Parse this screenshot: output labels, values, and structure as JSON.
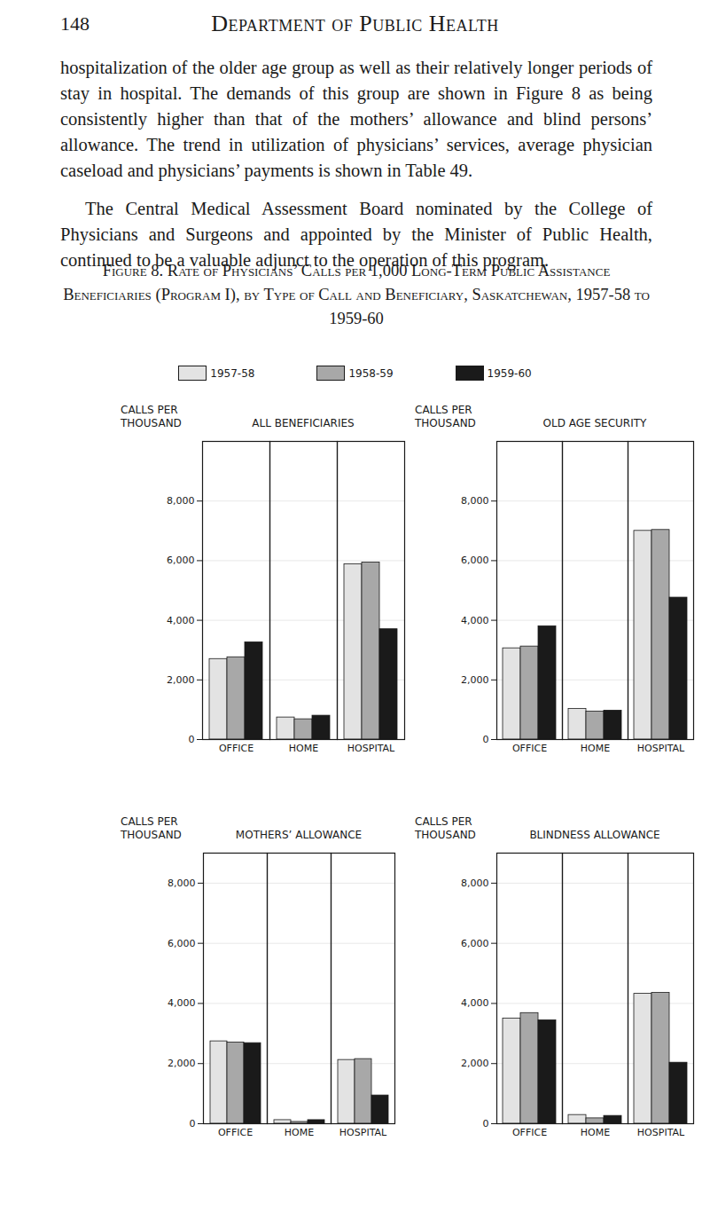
{
  "page_number": "148",
  "header": "Department of Public Health",
  "paragraphs": [
    "hospitalization of the older age group as well as their relatively longer periods of stay in hospital. The demands of this group are shown in Figure 8 as being consistently higher than that of the mothers’ allowance and blind persons’ allowance. The trend in utilization of physicians’ services, average physician caseload and physicians’ payments is shown in Table 49.",
    "The Central Medical Assessment Board nominated by the College of Physicians and Surgeons and appointed by the Minister of Public Health, continued to be a valuable adjunct to the operation of this program."
  ],
  "figure_caption": "Figure 8. Rate of Physicians’ Calls per 1,000 Long-Term Public Assistance Beneficiaries (Program I), by Type of Call and Beneficiary, Saskatchewan, 1957-58 to 1959-60",
  "chart_data": [
    {
      "type": "bar",
      "title": "ALL BENEFICIARIES",
      "y_label": "CALLS PER THOUSAND",
      "categories": [
        "OFFICE",
        "HOME",
        "HOSPITAL"
      ],
      "series": [
        {
          "name": "1957-58",
          "color": "#e3e3e3",
          "values": [
            2700,
            740,
            5880
          ]
        },
        {
          "name": "1958-59",
          "color": "#a8a8a8",
          "values": [
            2760,
            680,
            5940
          ]
        },
        {
          "name": "1959-60",
          "color": "#1a1a1a",
          "values": [
            3260,
            800,
            3700
          ]
        }
      ],
      "ylim": [
        0,
        10000
      ],
      "yticks": [
        0,
        {
          "value": 2000,
          "label": "2,000"
        },
        {
          "value": 4000,
          "label": "4,000"
        },
        {
          "value": 6000,
          "label": "6,000"
        },
        {
          "value": 8000,
          "label": "8,000"
        }
      ],
      "grid": true,
      "legend": "top"
    },
    {
      "type": "bar",
      "title": "OLD AGE SECURITY",
      "y_label": "CALLS PER THOUSAND",
      "categories": [
        "OFFICE",
        "HOME",
        "HOSPITAL"
      ],
      "series": [
        {
          "name": "1957-58",
          "color": "#e3e3e3",
          "values": [
            3060,
            1030,
            7000
          ]
        },
        {
          "name": "1958-59",
          "color": "#a8a8a8",
          "values": [
            3120,
            940,
            7030
          ]
        },
        {
          "name": "1959-60",
          "color": "#1a1a1a",
          "values": [
            3800,
            970,
            4760
          ]
        }
      ],
      "ylim": [
        0,
        10000
      ],
      "yticks": [
        0,
        {
          "value": 2000,
          "label": "2,000"
        },
        {
          "value": 4000,
          "label": "4,000"
        },
        {
          "value": 6000,
          "label": "6,000"
        },
        {
          "value": 8000,
          "label": "8,000"
        }
      ],
      "grid": true
    },
    {
      "type": "bar",
      "title": "MOTHERS’ ALLOWANCE",
      "y_label": "CALLS PER THOUSAND",
      "categories": [
        "OFFICE",
        "HOME",
        "HOSPITAL"
      ],
      "series": [
        {
          "name": "1957-58",
          "color": "#e3e3e3",
          "values": [
            2740,
            120,
            2120
          ]
        },
        {
          "name": "1958-59",
          "color": "#a8a8a8",
          "values": [
            2700,
            60,
            2150
          ]
        },
        {
          "name": "1959-60",
          "color": "#1a1a1a",
          "values": [
            2680,
            120,
            940
          ]
        }
      ],
      "ylim": [
        0,
        9000
      ],
      "yticks": [
        0,
        {
          "value": 2000,
          "label": "2,000"
        },
        {
          "value": 4000,
          "label": "4,000"
        },
        {
          "value": 6000,
          "label": "6,000"
        },
        {
          "value": 8000,
          "label": "8,000"
        }
      ],
      "grid": true
    },
    {
      "type": "bar",
      "title": "BLINDNESS ALLOWANCE",
      "y_label": "CALLS PER THOUSAND",
      "categories": [
        "OFFICE",
        "HOME",
        "HOSPITAL"
      ],
      "series": [
        {
          "name": "1957-58",
          "color": "#e3e3e3",
          "values": [
            3500,
            290,
            4320
          ]
        },
        {
          "name": "1958-59",
          "color": "#a8a8a8",
          "values": [
            3680,
            180,
            4350
          ]
        },
        {
          "name": "1959-60",
          "color": "#1a1a1a",
          "values": [
            3440,
            260,
            2030
          ]
        }
      ],
      "ylim": [
        0,
        9000
      ],
      "yticks": [
        0,
        {
          "value": 2000,
          "label": "2,000"
        },
        {
          "value": 4000,
          "label": "4,000"
        },
        {
          "value": 6000,
          "label": "6,000"
        },
        {
          "value": 8000,
          "label": "8,000"
        }
      ],
      "grid": true
    }
  ]
}
